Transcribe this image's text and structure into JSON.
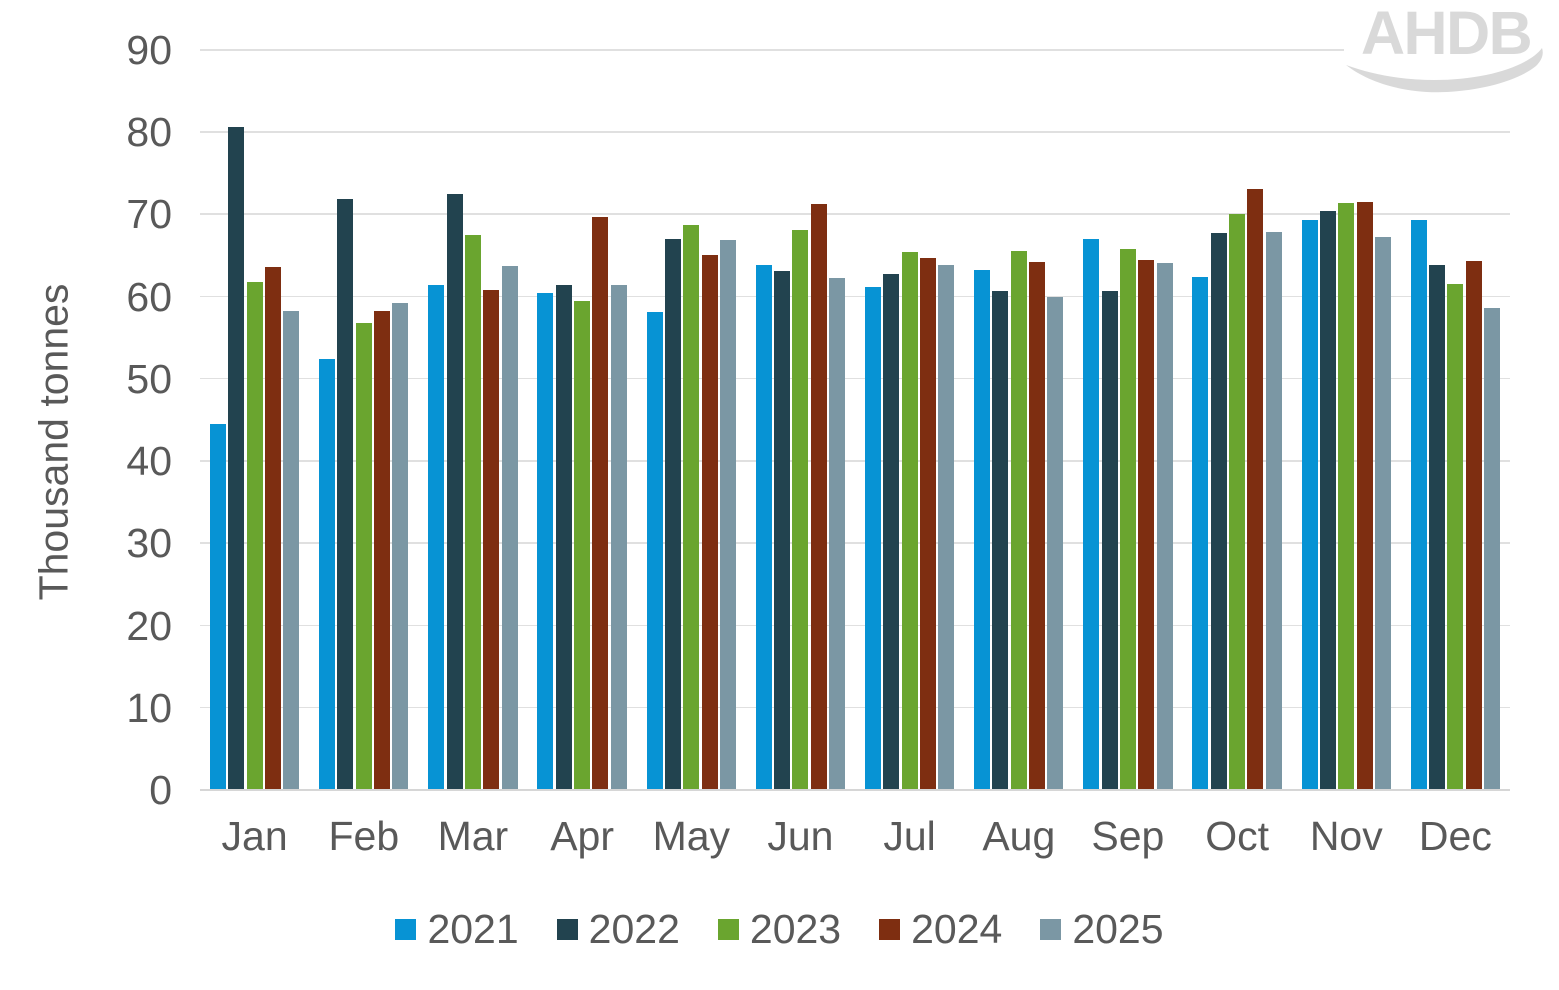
{
  "logo": {
    "text": "AHDB",
    "color": "#d9d9d9"
  },
  "chart_data": {
    "type": "bar",
    "title": "",
    "xlabel": "",
    "ylabel": "Thousand tonnes",
    "ylim": [
      0,
      90
    ],
    "yticks": [
      0,
      10,
      20,
      30,
      40,
      50,
      60,
      70,
      80,
      90
    ],
    "grid": true,
    "legend_position": "bottom",
    "categories": [
      "Jan",
      "Feb",
      "Mar",
      "Apr",
      "May",
      "Jun",
      "Jul",
      "Aug",
      "Sep",
      "Oct",
      "Nov",
      "Dec"
    ],
    "series": [
      {
        "name": "2021",
        "color": "#0793d4",
        "values": [
          44.5,
          52.4,
          61.4,
          60.5,
          58.2,
          63.8,
          61.2,
          63.2,
          67.0,
          62.4,
          69.3,
          69.3
        ]
      },
      {
        "name": "2022",
        "color": "#22434f",
        "values": [
          80.6,
          71.9,
          72.5,
          61.4,
          67.0,
          63.1,
          62.8,
          60.7,
          60.7,
          67.7,
          70.4,
          63.8
        ]
      },
      {
        "name": "2023",
        "color": "#6aa52f",
        "values": [
          61.8,
          56.8,
          67.5,
          59.5,
          68.7,
          68.1,
          65.4,
          65.6,
          65.8,
          70.1,
          71.4,
          61.6
        ]
      },
      {
        "name": "2024",
        "color": "#7e2e11",
        "values": [
          63.6,
          58.3,
          60.8,
          69.7,
          65.1,
          71.3,
          64.7,
          64.2,
          64.5,
          73.1,
          71.5,
          64.4
        ]
      },
      {
        "name": "2025",
        "color": "#7b97a4",
        "values": [
          58.3,
          59.2,
          63.7,
          61.4,
          66.9,
          62.3,
          63.9,
          60.0,
          64.1,
          67.9,
          67.3,
          58.6
        ]
      }
    ],
    "text_color": "#595959",
    "gridline_color": "#e0e0e0",
    "axisline_color": "#d6d6d6"
  }
}
